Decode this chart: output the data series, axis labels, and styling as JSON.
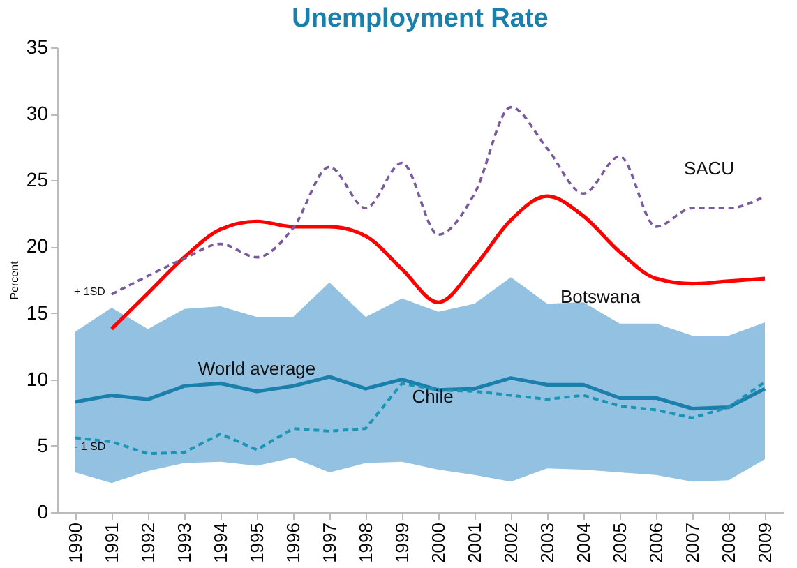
{
  "chart_data": {
    "type": "line",
    "title": "Unemployment Rate",
    "ylabel": "Percent",
    "categories": [
      "1990",
      "1991",
      "1992",
      "1993",
      "1994",
      "1995",
      "1996",
      "1997",
      "1998",
      "1999",
      "2000",
      "2001",
      "2002",
      "2003",
      "2004",
      "2005",
      "2006",
      "2007",
      "2008",
      "2009"
    ],
    "ylim": [
      0,
      35
    ],
    "yticks": [
      0,
      5,
      10,
      15,
      20,
      25,
      30,
      35
    ],
    "grid": false,
    "series": [
      {
        "name": "World average",
        "color": "#1b7fab",
        "values": [
          8.3,
          8.8,
          8.5,
          9.5,
          9.7,
          9.1,
          9.5,
          10.2,
          9.3,
          10.0,
          9.2,
          9.3,
          10.1,
          9.6,
          9.6,
          8.6,
          8.6,
          7.8,
          7.9,
          9.3
        ],
        "lower": [
          3.0,
          2.2,
          3.1,
          3.7,
          3.8,
          3.5,
          4.1,
          3.0,
          3.7,
          3.8,
          3.2,
          2.8,
          2.3,
          3.3,
          3.2,
          3.0,
          2.8,
          2.3,
          2.4,
          4.0
        ],
        "upper": [
          13.6,
          15.4,
          13.8,
          15.3,
          15.5,
          14.7,
          14.7,
          17.3,
          14.7,
          16.1,
          15.1,
          15.7,
          17.7,
          15.7,
          15.8,
          14.2,
          14.2,
          13.3,
          13.3,
          14.3
        ]
      },
      {
        "name": "Chile",
        "color": "#1b95b5",
        "line_style": "dashed",
        "values": [
          5.6,
          5.3,
          4.4,
          4.5,
          5.9,
          4.7,
          6.3,
          6.1,
          6.3,
          9.7,
          9.2,
          9.1,
          8.8,
          8.5,
          8.8,
          8.0,
          7.7,
          7.1,
          7.9,
          9.8
        ]
      },
      {
        "name": "Botswana",
        "color": "#ff0000",
        "values": [
          null,
          13.8,
          16.5,
          19.2,
          21.3,
          21.9,
          21.5,
          21.5,
          20.8,
          18.3,
          15.8,
          18.5,
          22.0,
          23.8,
          22.3,
          19.6,
          17.6,
          17.2,
          17.4,
          17.6
        ]
      },
      {
        "name": "SACU",
        "color": "#7a5a9c",
        "line_style": "dashed",
        "values": [
          null,
          16.4,
          17.8,
          19.1,
          20.2,
          19.2,
          21.4,
          26.0,
          22.9,
          26.3,
          20.9,
          24.0,
          30.5,
          27.4,
          24.0,
          26.8,
          21.5,
          22.9,
          22.9,
          23.8
        ]
      }
    ],
    "annotations": [
      "+ 1SD",
      "- 1 SD"
    ]
  }
}
